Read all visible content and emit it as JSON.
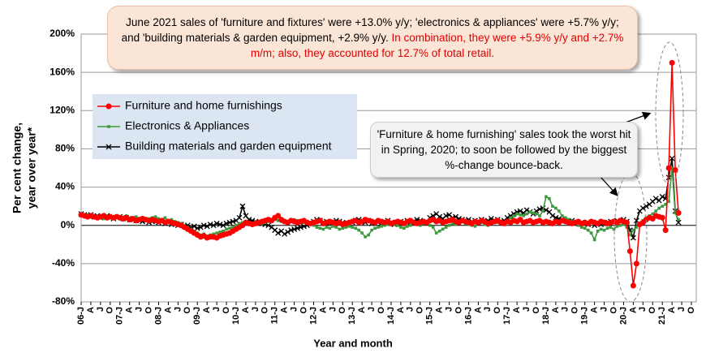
{
  "chart_data": {
    "type": "line",
    "annotation_main": "June 2021 sales of 'furniture and fixtures' were +13.0% y/y; 'electronics & appliances' were +5.7% y/y; and 'building materials & garden equipment, +2.9% y/y.",
    "annotation_main_highlight": "In combination, they were +5.9% y/y and +2.7% m/m; also, they accounted for 12.7% of total retail.",
    "annotation_side": "'Furniture & home furnishing' sales took the worst hit in Spring, 2020; to soon be followed by the biggest %-change bounce-back.",
    "y_label": [
      "Per cent change,",
      "year over year*"
    ],
    "x_label": "Year and month",
    "legend": "upper left",
    "grid": true,
    "ylim": [
      -80,
      200
    ],
    "yticks": [
      {
        "value": -80,
        "label": "-80%"
      },
      {
        "value": -40,
        "label": "-40%"
      },
      {
        "value": 0,
        "label": "0%"
      },
      {
        "value": 40,
        "label": "40%"
      },
      {
        "value": 80,
        "label": "80%"
      },
      {
        "value": 120,
        "label": "120%"
      },
      {
        "value": 160,
        "label": "160%"
      },
      {
        "value": 200,
        "label": "200%"
      }
    ],
    "categories": [
      "06-J",
      null,
      null,
      "A",
      null,
      null,
      "J",
      null,
      null,
      "O",
      null,
      null,
      "07-J",
      null,
      null,
      "A",
      null,
      null,
      "J",
      null,
      null,
      "O",
      null,
      null,
      "08-J",
      null,
      null,
      "A",
      null,
      null,
      "J",
      null,
      null,
      "O",
      null,
      null,
      "09-J",
      null,
      null,
      "A",
      null,
      null,
      "J",
      null,
      null,
      "O",
      null,
      null,
      "10-J",
      null,
      null,
      "A",
      null,
      null,
      "J",
      null,
      null,
      "O",
      null,
      null,
      "11-J",
      null,
      null,
      "A",
      null,
      null,
      "J",
      null,
      null,
      "O",
      null,
      null,
      "12-J",
      null,
      null,
      "A",
      null,
      null,
      "J",
      null,
      null,
      "O",
      null,
      null,
      "13-J",
      null,
      null,
      "A",
      null,
      null,
      "J",
      null,
      null,
      "O",
      null,
      null,
      "14-J",
      null,
      null,
      "A",
      null,
      null,
      "J",
      null,
      null,
      "O",
      null,
      null,
      "15-J",
      null,
      null,
      "A",
      null,
      null,
      "J",
      null,
      null,
      "O",
      null,
      null,
      "16-J",
      null,
      null,
      "A",
      null,
      null,
      "J",
      null,
      null,
      "O",
      null,
      null,
      "17-J",
      null,
      null,
      "A",
      null,
      null,
      "J",
      null,
      null,
      "O",
      null,
      null,
      "18-J",
      null,
      null,
      "A",
      null,
      null,
      "J",
      null,
      null,
      "O",
      null,
      null,
      "19-J",
      null,
      null,
      "A",
      null,
      null,
      "J",
      null,
      null,
      "O",
      null,
      null,
      "20-J",
      null,
      null,
      "A",
      null,
      null,
      "J",
      null,
      null,
      "O",
      null,
      null,
      "21-J",
      null,
      null,
      "A",
      null,
      null,
      "J",
      null,
      null,
      "O"
    ],
    "series": [
      {
        "name": "Furniture and home furnishings",
        "color": "#ff0000",
        "marker": "circle",
        "values": [
          11,
          10,
          9,
          10,
          9,
          8,
          9,
          10,
          8,
          9,
          8,
          9,
          8,
          7,
          8,
          6,
          7,
          5,
          6,
          7,
          6,
          5,
          6,
          5,
          4,
          5,
          3,
          4,
          3,
          2,
          1,
          0,
          -2,
          -4,
          -6,
          -8,
          -10,
          -12,
          -11,
          -13,
          -12,
          -12,
          -13,
          -11,
          -10,
          -9,
          -8,
          -6,
          -4,
          -2,
          0,
          3,
          2,
          1,
          2,
          3,
          4,
          5,
          6,
          5,
          8,
          10,
          6,
          4,
          3,
          5,
          4,
          3,
          4,
          5,
          3,
          2,
          3,
          4,
          5,
          2,
          3,
          4,
          3,
          2,
          3,
          1,
          2,
          3,
          4,
          5,
          3,
          4,
          6,
          5,
          4,
          3,
          5,
          4,
          3,
          4,
          2,
          3,
          4,
          3,
          2,
          4,
          5,
          3,
          2,
          3,
          4,
          3,
          5,
          6,
          4,
          5,
          3,
          4,
          5,
          6,
          4,
          3,
          5,
          4,
          3,
          2,
          4,
          3,
          5,
          4,
          2,
          3,
          4,
          5,
          3,
          2,
          4,
          3,
          5,
          4,
          6,
          3,
          4,
          5,
          3,
          4,
          5,
          3,
          4,
          3,
          2,
          4,
          3,
          5,
          4,
          3,
          2,
          3,
          4,
          2,
          3,
          2,
          4,
          3,
          2,
          4,
          3,
          2,
          3,
          4,
          3,
          5,
          4,
          3,
          -27,
          -63,
          -40,
          1,
          3,
          6,
          8,
          7,
          10,
          9,
          8,
          -5,
          60,
          170,
          58,
          13,
          null,
          null,
          null,
          null
        ]
      },
      {
        "name": "Electronics & Appliances",
        "color": "#3f9a3f",
        "marker": "square",
        "values": [
          12,
          10,
          11,
          9,
          10,
          8,
          9,
          7,
          8,
          10,
          9,
          8,
          9,
          8,
          10,
          7,
          8,
          9,
          7,
          8,
          6,
          7,
          8,
          9,
          7,
          6,
          8,
          5,
          6,
          4,
          3,
          2,
          0,
          -2,
          -4,
          -6,
          -8,
          -10,
          -9,
          -11,
          -10,
          -9,
          -8,
          -7,
          -6,
          -4,
          -3,
          -2,
          0,
          2,
          3,
          4,
          3,
          2,
          4,
          3,
          2,
          3,
          4,
          5,
          6,
          5,
          4,
          3,
          4,
          5,
          6,
          5,
          4,
          3,
          2,
          1,
          0,
          -2,
          -3,
          -4,
          -2,
          -3,
          -1,
          -2,
          -4,
          -3,
          -2,
          -1,
          -2,
          -3,
          -5,
          -8,
          -12,
          -10,
          -5,
          -3,
          -2,
          -1,
          0,
          1,
          2,
          1,
          0,
          -2,
          -3,
          -1,
          0,
          2,
          1,
          0,
          2,
          3,
          0,
          -2,
          -8,
          -6,
          -4,
          -2,
          0,
          2,
          1,
          3,
          4,
          2,
          1,
          0,
          -1,
          2,
          3,
          1,
          0,
          2,
          4,
          3,
          2,
          1,
          5,
          8,
          10,
          12,
          11,
          10,
          12,
          14,
          13,
          12,
          10,
          15,
          30,
          28,
          20,
          18,
          15,
          10,
          8,
          6,
          4,
          2,
          0,
          -2,
          -3,
          -5,
          -8,
          -15,
          -6,
          -4,
          -5,
          -3,
          -2,
          -4,
          -1,
          0,
          1,
          -2,
          -10,
          -5,
          -2,
          2,
          5,
          8,
          10,
          12,
          15,
          18,
          20,
          22,
          25,
          60,
          13,
          6,
          null,
          null,
          null,
          null
        ]
      },
      {
        "name": "Building materials and garden equipment",
        "color": "#000000",
        "marker": "x",
        "values": [
          12,
          11,
          10,
          11,
          9,
          10,
          8,
          9,
          10,
          8,
          7,
          8,
          9,
          7,
          8,
          6,
          7,
          5,
          6,
          4,
          5,
          3,
          4,
          5,
          3,
          4,
          2,
          3,
          1,
          2,
          0,
          1,
          -1,
          0,
          -2,
          -1,
          -3,
          -2,
          0,
          -1,
          1,
          0,
          2,
          1,
          0,
          2,
          3,
          4,
          5,
          8,
          20,
          10,
          6,
          5,
          4,
          3,
          2,
          1,
          0,
          -2,
          -5,
          -8,
          -6,
          -9,
          -7,
          -5,
          -4,
          -3,
          -2,
          -1,
          0,
          2,
          4,
          6,
          5,
          3,
          4,
          2,
          3,
          5,
          4,
          3,
          2,
          1,
          3,
          5,
          6,
          4,
          3,
          5,
          2,
          4,
          3,
          2,
          4,
          5,
          2,
          1,
          3,
          4,
          2,
          5,
          3,
          4,
          6,
          5,
          3,
          4,
          8,
          10,
          12,
          9,
          7,
          10,
          11,
          8,
          9,
          7,
          6,
          5,
          6,
          4,
          5,
          3,
          6,
          4,
          5,
          7,
          5,
          6,
          4,
          5,
          8,
          10,
          12,
          14,
          15,
          13,
          16,
          14,
          12,
          15,
          17,
          18,
          16,
          14,
          10,
          8,
          7,
          6,
          5,
          4,
          5,
          3,
          2,
          3,
          2,
          1,
          3,
          0,
          2,
          1,
          3,
          2,
          4,
          3,
          5,
          4,
          6,
          4,
          -5,
          -13,
          5,
          15,
          18,
          20,
          22,
          25,
          28,
          26,
          30,
          28,
          50,
          70,
          15,
          3,
          null,
          null,
          null,
          null
        ]
      }
    ]
  }
}
